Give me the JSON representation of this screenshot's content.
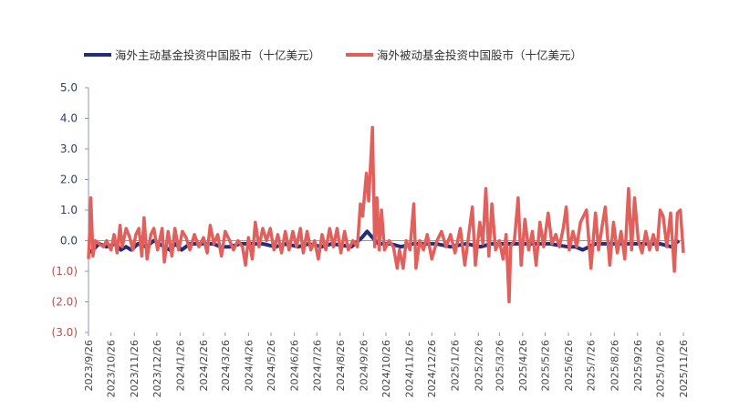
{
  "chart_data": {
    "type": "line",
    "title": "",
    "xlabel": "",
    "ylabel": "",
    "ylim": [
      -3.0,
      5.0
    ],
    "yticks": [
      "5.0",
      "4.0",
      "3.0",
      "2.0",
      "1.0",
      "0.0",
      "(1.0)",
      "(2.0)",
      "(3.0)"
    ],
    "ytick_values": [
      5,
      4,
      3,
      2,
      1,
      0,
      -1,
      -2,
      -3
    ],
    "xlim": [
      "2023/9/26",
      "2025/11/26"
    ],
    "xticks": [
      "2023/9/26",
      "2023/10/26",
      "2023/11/26",
      "2023/12/26",
      "2024/1/26",
      "2024/2/26",
      "2024/3/26",
      "2024/4/26",
      "2024/5/26",
      "2024/6/26",
      "2024/7/26",
      "2024/8/26",
      "2024/9/26",
      "2024/10/26",
      "2024/11/26",
      "2024/12/26",
      "2025/1/26",
      "2025/2/26",
      "2025/3/26",
      "2025/4/26",
      "2025/5/26",
      "2025/6/26",
      "2025/7/26",
      "2025/8/26",
      "2025/9/26",
      "2025/10/26",
      "2025/11/26"
    ],
    "grid": false,
    "legend_position": "top",
    "colors": {
      "positive_tick": "#2a3f6b",
      "negative_tick": "#b5504a",
      "axis": "#8c9aa6"
    },
    "series": [
      {
        "name": "海外主动基金投资中国股市（十亿美元）",
        "color": "#1f2f7a",
        "points": [
          [
            "2023/9/26",
            -0.4
          ],
          [
            "2023/10/2",
            -0.3
          ],
          [
            "2023/10/10",
            -0.1
          ],
          [
            "2023/10/20",
            -0.2
          ],
          [
            "2023/11/1",
            -0.1
          ],
          [
            "2023/11/8",
            -0.3
          ],
          [
            "2023/11/15",
            -0.2
          ],
          [
            "2023/11/22",
            -0.3
          ],
          [
            "2023/12/1",
            -0.1
          ],
          [
            "2023/12/12",
            -0.2
          ],
          [
            "2023/12/22",
            0.0
          ],
          [
            "2024/1/5",
            -0.2
          ],
          [
            "2024/1/12",
            -0.3
          ],
          [
            "2024/1/20",
            -0.1
          ],
          [
            "2024/1/28",
            -0.3
          ],
          [
            "2024/2/8",
            -0.1
          ],
          [
            "2024/2/20",
            -0.1
          ],
          [
            "2024/3/1",
            -0.1
          ],
          [
            "2024/3/10",
            -0.1
          ],
          [
            "2024/3/20",
            -0.2
          ],
          [
            "2024/4/1",
            -0.2
          ],
          [
            "2024/4/15",
            -0.1
          ],
          [
            "2024/5/1",
            -0.1
          ],
          [
            "2024/5/15",
            -0.1
          ],
          [
            "2024/6/1",
            -0.2
          ],
          [
            "2024/6/15",
            -0.1
          ],
          [
            "2024/7/1",
            -0.2
          ],
          [
            "2024/7/15",
            -0.1
          ],
          [
            "2024/8/1",
            -0.2
          ],
          [
            "2024/8/15",
            -0.1
          ],
          [
            "2024/9/10",
            -0.2
          ],
          [
            "2024/9/24",
            0.1
          ],
          [
            "2024/10/1",
            0.3
          ],
          [
            "2024/10/8",
            0.1
          ],
          [
            "2024/10/16",
            -0.1
          ],
          [
            "2024/11/1",
            -0.1
          ],
          [
            "2024/11/15",
            -0.2
          ],
          [
            "2024/12/1",
            -0.1
          ],
          [
            "2025/1/1",
            -0.1
          ],
          [
            "2025/1/20",
            -0.2
          ],
          [
            "2025/2/10",
            -0.1
          ],
          [
            "2025/3/1",
            -0.2
          ],
          [
            "2025/3/15",
            -0.1
          ],
          [
            "2025/4/10",
            -0.1
          ],
          [
            "2025/5/1",
            -0.1
          ],
          [
            "2025/6/1",
            -0.1
          ],
          [
            "2025/6/25",
            -0.2
          ],
          [
            "2025/7/5",
            -0.2
          ],
          [
            "2025/7/15",
            -0.3
          ],
          [
            "2025/8/1",
            -0.1
          ],
          [
            "2025/9/1",
            -0.1
          ],
          [
            "2025/9/20",
            -0.1
          ],
          [
            "2025/10/10",
            -0.1
          ],
          [
            "2025/10/26",
            -0.1
          ],
          [
            "2025/11/10",
            -0.2
          ],
          [
            "2025/11/20",
            0.0
          ]
        ]
      },
      {
        "name": "海外被动基金投资中国股市（十亿美元）",
        "color": "#e2605c",
        "points": [
          [
            "2023/9/26",
            -0.6
          ],
          [
            "2023/9/28",
            0.5
          ],
          [
            "2023/9/29",
            1.4
          ],
          [
            "2023/10/2",
            -0.5
          ],
          [
            "2023/10/5",
            0.0
          ],
          [
            "2023/10/10",
            -0.1
          ],
          [
            "2023/10/16",
            -0.2
          ],
          [
            "2023/10/20",
            0.0
          ],
          [
            "2023/10/26",
            -0.3
          ],
          [
            "2023/10/30",
            0.2
          ],
          [
            "2023/11/3",
            -0.4
          ],
          [
            "2023/11/7",
            0.5
          ],
          [
            "2023/11/10",
            -0.2
          ],
          [
            "2023/11/15",
            0.4
          ],
          [
            "2023/11/20",
            0.1
          ],
          [
            "2023/11/24",
            -0.3
          ],
          [
            "2023/11/28",
            0.2
          ],
          [
            "2023/12/2",
            0.4
          ],
          [
            "2023/12/6",
            -0.5
          ],
          [
            "2023/12/9",
            0.75
          ],
          [
            "2023/12/13",
            -0.6
          ],
          [
            "2023/12/18",
            0.2
          ],
          [
            "2023/12/22",
            0.4
          ],
          [
            "2023/12/27",
            -0.3
          ],
          [
            "2024/1/2",
            0.4
          ],
          [
            "2024/1/5",
            -0.7
          ],
          [
            "2024/1/10",
            0.3
          ],
          [
            "2024/1/15",
            -0.5
          ],
          [
            "2024/1/19",
            0.4
          ],
          [
            "2024/1/24",
            -0.3
          ],
          [
            "2024/1/29",
            0.3
          ],
          [
            "2024/2/3",
            0.1
          ],
          [
            "2024/2/8",
            -0.3
          ],
          [
            "2024/2/14",
            0.2
          ],
          [
            "2024/2/20",
            -0.2
          ],
          [
            "2024/2/26",
            0.1
          ],
          [
            "2024/3/2",
            -0.4
          ],
          [
            "2024/3/6",
            0.5
          ],
          [
            "2024/3/11",
            -0.1
          ],
          [
            "2024/3/16",
            0.2
          ],
          [
            "2024/3/21",
            -0.5
          ],
          [
            "2024/3/26",
            0.3
          ],
          [
            "2024/4/1",
            0.0
          ],
          [
            "2024/4/6",
            -0.3
          ],
          [
            "2024/4/12",
            0.0
          ],
          [
            "2024/4/18",
            -0.2
          ],
          [
            "2024/4/22",
            -0.8
          ],
          [
            "2024/4/26",
            0.1
          ],
          [
            "2024/5/1",
            -0.6
          ],
          [
            "2024/5/5",
            0.6
          ],
          [
            "2024/5/10",
            -0.2
          ],
          [
            "2024/5/15",
            0.4
          ],
          [
            "2024/5/20",
            0.0
          ],
          [
            "2024/5/25",
            0.4
          ],
          [
            "2024/5/30",
            -0.3
          ],
          [
            "2024/6/4",
            0.2
          ],
          [
            "2024/6/9",
            -0.4
          ],
          [
            "2024/6/14",
            0.3
          ],
          [
            "2024/6/19",
            -0.3
          ],
          [
            "2024/6/24",
            0.3
          ],
          [
            "2024/6/29",
            -0.2
          ],
          [
            "2024/7/4",
            0.4
          ],
          [
            "2024/7/8",
            -0.4
          ],
          [
            "2024/7/13",
            0.3
          ],
          [
            "2024/7/18",
            -0.3
          ],
          [
            "2024/7/23",
            0.0
          ],
          [
            "2024/7/28",
            -0.6
          ],
          [
            "2024/8/2",
            0.2
          ],
          [
            "2024/8/7",
            -0.3
          ],
          [
            "2024/8/12",
            0.4
          ],
          [
            "2024/8/17",
            -0.2
          ],
          [
            "2024/8/22",
            0.4
          ],
          [
            "2024/8/27",
            -0.4
          ],
          [
            "2024/9/1",
            0.3
          ],
          [
            "2024/9/6",
            -0.3
          ],
          [
            "2024/9/12",
            0.0
          ],
          [
            "2024/9/18",
            -0.2
          ],
          [
            "2024/9/22",
            1.2
          ],
          [
            "2024/9/25",
            0.8
          ],
          [
            "2024/9/30",
            2.2
          ],
          [
            "2024/10/3",
            1.3
          ],
          [
            "2024/10/8",
            3.7
          ],
          [
            "2024/10/11",
            -0.2
          ],
          [
            "2024/10/14",
            1.4
          ],
          [
            "2024/10/17",
            -0.3
          ],
          [
            "2024/10/20",
            1.0
          ],
          [
            "2024/10/24",
            -0.3
          ],
          [
            "2024/10/30",
            0.0
          ],
          [
            "2024/11/5",
            -0.2
          ],
          [
            "2024/11/10",
            -0.9
          ],
          [
            "2024/11/13",
            -0.3
          ],
          [
            "2024/11/18",
            -0.9
          ],
          [
            "2024/11/22",
            0.0
          ],
          [
            "2024/11/27",
            -0.3
          ],
          [
            "2024/12/2",
            1.2
          ],
          [
            "2024/12/5",
            -0.9
          ],
          [
            "2024/12/10",
            0.0
          ],
          [
            "2024/12/15",
            -0.3
          ],
          [
            "2024/12/20",
            0.2
          ],
          [
            "2024/12/26",
            -0.6
          ],
          [
            "2025/1/2",
            0.0
          ],
          [
            "2025/1/8",
            0.3
          ],
          [
            "2025/1/14",
            -0.2
          ],
          [
            "2025/1/20",
            0.2
          ],
          [
            "2025/1/26",
            -0.4
          ],
          [
            "2025/2/2",
            0.4
          ],
          [
            "2025/2/8",
            -0.8
          ],
          [
            "2025/2/18",
            1.1
          ],
          [
            "2025/2/22",
            -0.8
          ],
          [
            "2025/2/28",
            0.6
          ],
          [
            "2025/3/4",
            -0.1
          ],
          [
            "2025/3/8",
            1.7
          ],
          [
            "2025/3/12",
            -0.5
          ],
          [
            "2025/3/16",
            1.2
          ],
          [
            "2025/3/21",
            -0.3
          ],
          [
            "2025/3/26",
            0.0
          ],
          [
            "2025/3/31",
            -0.6
          ],
          [
            "2025/4/4",
            0.2
          ],
          [
            "2025/4/8",
            -2.0
          ],
          [
            "2025/4/10",
            -0.2
          ],
          [
            "2025/4/15",
            0.0
          ],
          [
            "2025/4/20",
            1.4
          ],
          [
            "2025/4/24",
            -0.8
          ],
          [
            "2025/4/29",
            0.7
          ],
          [
            "2025/5/4",
            -0.3
          ],
          [
            "2025/5/9",
            0.3
          ],
          [
            "2025/5/14",
            -0.8
          ],
          [
            "2025/5/19",
            0.6
          ],
          [
            "2025/5/24",
            -0.2
          ],
          [
            "2025/5/30",
            0.9
          ],
          [
            "2025/6/4",
            -0.1
          ],
          [
            "2025/6/9",
            0.2
          ],
          [
            "2025/6/14",
            -0.2
          ],
          [
            "2025/6/19",
            0.4
          ],
          [
            "2025/6/23",
            1.1
          ],
          [
            "2025/6/27",
            -0.3
          ],
          [
            "2025/7/2",
            0.3
          ],
          [
            "2025/7/7",
            -0.2
          ],
          [
            "2025/7/12",
            0.6
          ],
          [
            "2025/7/20",
            1.0
          ],
          [
            "2025/7/26",
            -0.9
          ],
          [
            "2025/8/1",
            0.9
          ],
          [
            "2025/8/5",
            -0.3
          ],
          [
            "2025/8/10",
            0.5
          ],
          [
            "2025/8/14",
            1.1
          ],
          [
            "2025/8/20",
            -0.8
          ],
          [
            "2025/8/25",
            0.6
          ],
          [
            "2025/8/30",
            -0.4
          ],
          [
            "2025/9/4",
            0.3
          ],
          [
            "2025/9/9",
            -0.6
          ],
          [
            "2025/9/14",
            1.7
          ],
          [
            "2025/9/18",
            -0.3
          ],
          [
            "2025/9/22",
            1.4
          ],
          [
            "2025/9/27",
            0.0
          ],
          [
            "2025/10/2",
            -0.4
          ],
          [
            "2025/10/7",
            0.3
          ],
          [
            "2025/10/12",
            -0.3
          ],
          [
            "2025/10/17",
            0.2
          ],
          [
            "2025/10/22",
            -0.3
          ],
          [
            "2025/10/26",
            1.0
          ],
          [
            "2025/10/30",
            0.8
          ],
          [
            "2025/11/4",
            -0.2
          ],
          [
            "2025/11/9",
            0.9
          ],
          [
            "2025/11/14",
            -1.0
          ],
          [
            "2025/11/18",
            0.9
          ],
          [
            "2025/11/22",
            1.0
          ],
          [
            "2025/11/26",
            -0.4
          ]
        ]
      }
    ]
  }
}
